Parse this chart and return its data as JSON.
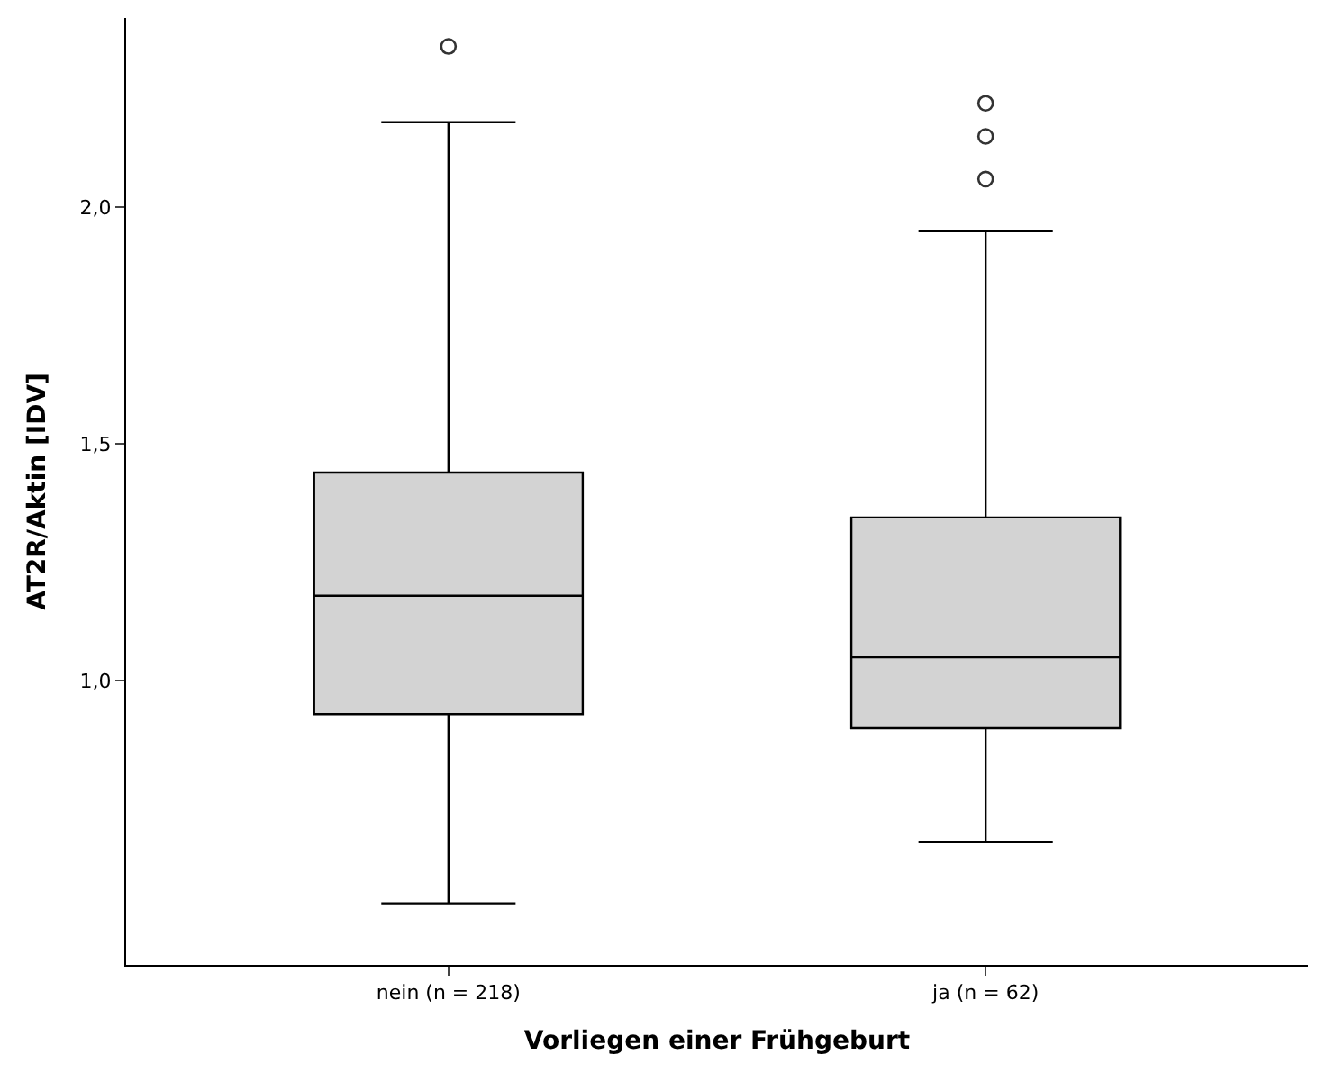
{
  "chart_data": {
    "type": "box",
    "xlabel": "Vorliegen einer Frühgeburt",
    "ylabel": "AT2R/Aktin [IDV]",
    "categories": [
      "nein (n = 218)",
      "ja (n = 62)"
    ],
    "boxes": [
      {
        "low": 0.53,
        "q1": 0.93,
        "median": 1.18,
        "q3": 1.44,
        "high": 2.18,
        "outliers": [
          2.34
        ]
      },
      {
        "low": 0.66,
        "q1": 0.9,
        "median": 1.05,
        "q3": 1.345,
        "high": 1.95,
        "outliers": [
          2.06,
          2.15,
          2.22
        ]
      }
    ],
    "color": "#d3d3d3",
    "ylim": [
      0.4,
      2.4
    ],
    "grid": false,
    "yticks": [
      {
        "value": 1.0,
        "label": "1,0"
      },
      {
        "value": 1.5,
        "label": "1,5"
      },
      {
        "value": 2.0,
        "label": "2,0"
      }
    ],
    "legend": false
  }
}
